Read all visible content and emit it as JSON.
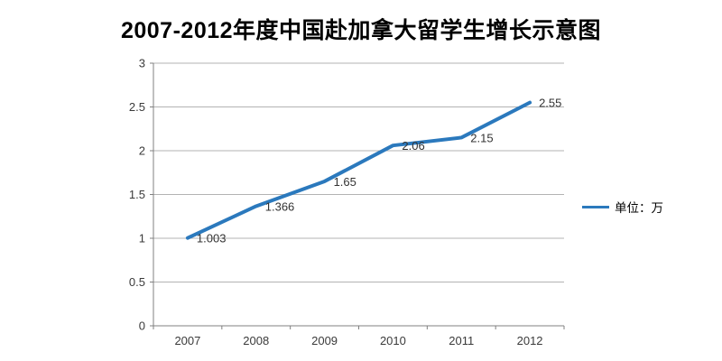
{
  "chart_data": {
    "type": "line",
    "title": "2007-2012年度中国赴加拿大留学生增长示意图",
    "categories": [
      "2007",
      "2008",
      "2009",
      "2010",
      "2011",
      "2012"
    ],
    "series": [
      {
        "name": "单位：万",
        "values": [
          1.003,
          1.366,
          1.65,
          2.06,
          2.15,
          2.55
        ],
        "color": "#2b79bd"
      }
    ],
    "data_labels": [
      "1.003",
      "1.366",
      "1.65",
      "2.06",
      "2.15",
      "2.55"
    ],
    "xlabel": "",
    "ylabel": "",
    "ylim": [
      0,
      3
    ],
    "ytick_step": 0.5,
    "yticks": [
      "0",
      "0.5",
      "1",
      "1.5",
      "2",
      "2.5",
      "3"
    ],
    "grid": "horizontal",
    "legend_position": "right",
    "legend": {
      "label": "单位：万"
    },
    "colors": {
      "background": "#ffffff",
      "gridline": "#b3b3b3",
      "axis": "#808080",
      "tick_label": "#3a3a3a",
      "data_label": "#333333",
      "title": "#000000"
    }
  }
}
